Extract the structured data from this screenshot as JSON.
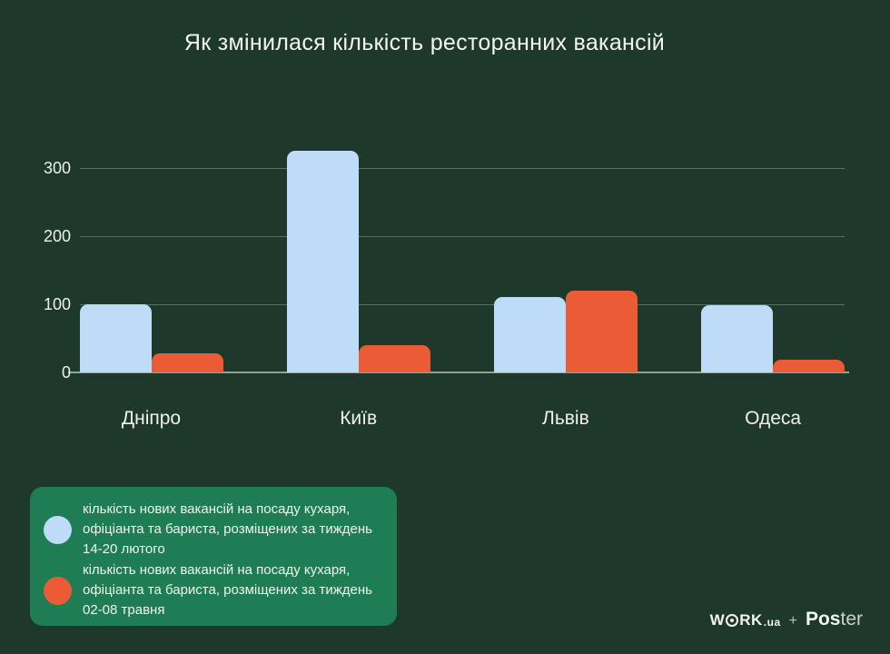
{
  "title": "Як змінилася кількість ресторанних вакансій",
  "chart_data": {
    "type": "bar",
    "title": "Як змінилася кількість ресторанних вакансій",
    "categories": [
      "Дніпро",
      "Київ",
      "Львів",
      "Одеса"
    ],
    "series": [
      {
        "name": "кількість нових вакансій на посаду кухаря, офіціанта та бариста, розміщених за тиждень 14-20 лютого",
        "color": "#bedcf7",
        "values": [
          100,
          325,
          110,
          98
        ]
      },
      {
        "name": "кількість нових вакансій на посаду кухаря, офіціанта та бариста, розміщених за тиждень 02-08 травня",
        "color": "#ea5b36",
        "values": [
          28,
          40,
          120,
          18
        ]
      }
    ],
    "xlabel": "",
    "ylabel": "",
    "yticks": [
      0,
      100,
      200,
      300
    ],
    "ylim": [
      0,
      340
    ],
    "grid": true,
    "legend_position": "bottom-left",
    "background_color": "#1e382c"
  },
  "legend": {
    "box_color": "#1f7d54",
    "items": [
      {
        "swatch_color": "#bedcf7",
        "text": "кількість нових вакансій на посаду кухаря,\nофіціанта та бариста, розміщених за тиждень\n14-20 лютого"
      },
      {
        "swatch_color": "#ea5b36",
        "text": "кількість нових вакансій на посаду кухаря,\nофіціанта та бариста, розміщених за тиждень\n02-08 травня"
      }
    ]
  },
  "footer": {
    "work_part1": "W",
    "work_part2": "RK",
    "work_suffix": ".ua",
    "separator": "+",
    "poster_bold": "Pos",
    "poster_light": "ter"
  }
}
